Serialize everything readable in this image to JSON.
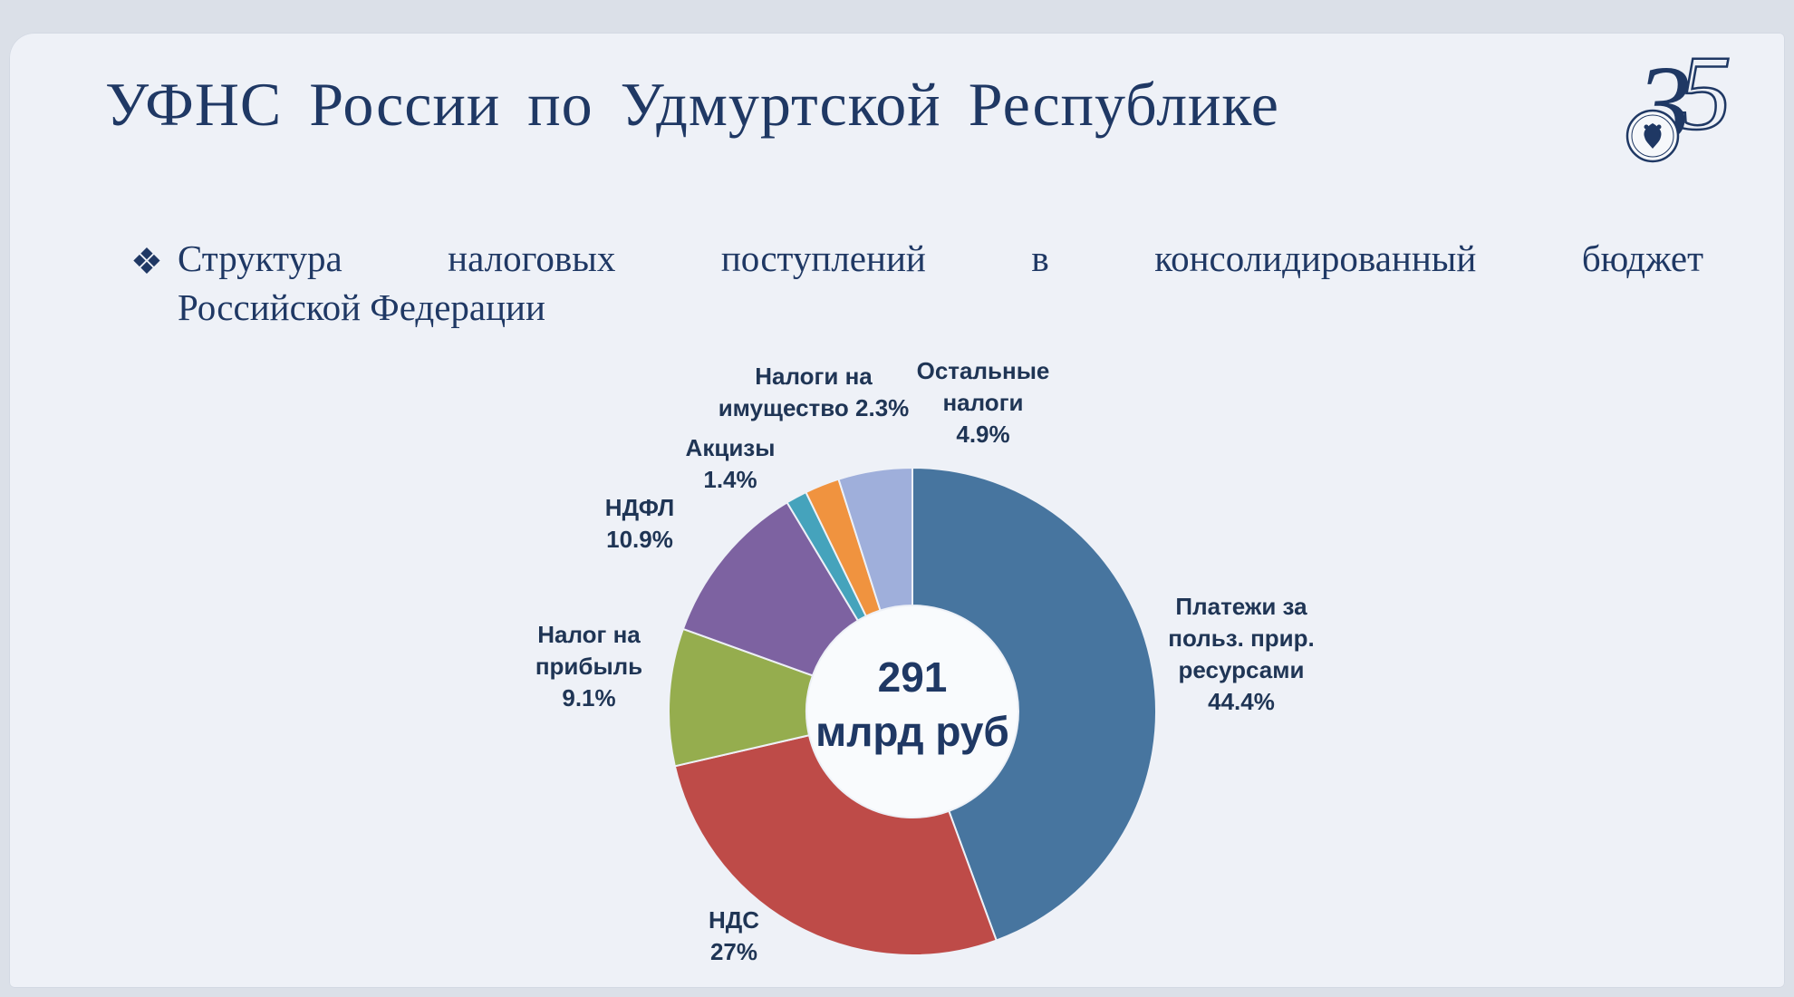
{
  "slide": {
    "title": "УФНС России по Удмуртской Республике",
    "bullet_char": "❖",
    "subtitle_line1": "Структура налоговых поступлений в консолидированный бюджет",
    "subtitle_line2": "Российской Федерации",
    "logo_digit1": "3",
    "logo_digit2": "5"
  },
  "colors": {
    "navy": "#1F3864",
    "slide_background": "#eef1f7",
    "label_text": "#1F3555"
  },
  "chart_data": {
    "type": "pie",
    "subtype": "donut",
    "title": "Структура налоговых поступлений в консолидированный бюджет Российской Федерации",
    "center_label": "291\nмлрд руб",
    "total_label": "291 млрд руб",
    "start_angle_deg": 0,
    "direction": "clockwise",
    "legend_position": "none",
    "segments": [
      {
        "label": "Платежи за польз. прир. ресурсами",
        "value": 44.4,
        "color": "#47759F"
      },
      {
        "label": "НДС",
        "value": 27.0,
        "color": "#BE4B48"
      },
      {
        "label": "Налог на прибыль",
        "value": 9.1,
        "color": "#95AD4E"
      },
      {
        "label": "НДФЛ",
        "value": 10.9,
        "color": "#7D62A1"
      },
      {
        "label": "Акцизы",
        "value": 1.4,
        "color": "#45A3BC"
      },
      {
        "label": "Налоги на имущество",
        "value": 2.3,
        "color": "#F0933F"
      },
      {
        "label": "Остальные налоги",
        "value": 4.9,
        "color": "#9FAFDB"
      }
    ]
  },
  "chart_labels": {
    "property": "Налоги на\nимущество 2.3%",
    "other": "Остальные\nналоги\n4.9%",
    "excise": "Акцизы\n1.4%",
    "ndfl": "НДФЛ\n10.9%",
    "profit": "Налог на\nприбыль\n9.1%",
    "nds": "НДС\n27%",
    "resources": "Платежи за\nпольз. прир.\nресурсами\n44.4%",
    "center": "291\nмлрд руб"
  }
}
